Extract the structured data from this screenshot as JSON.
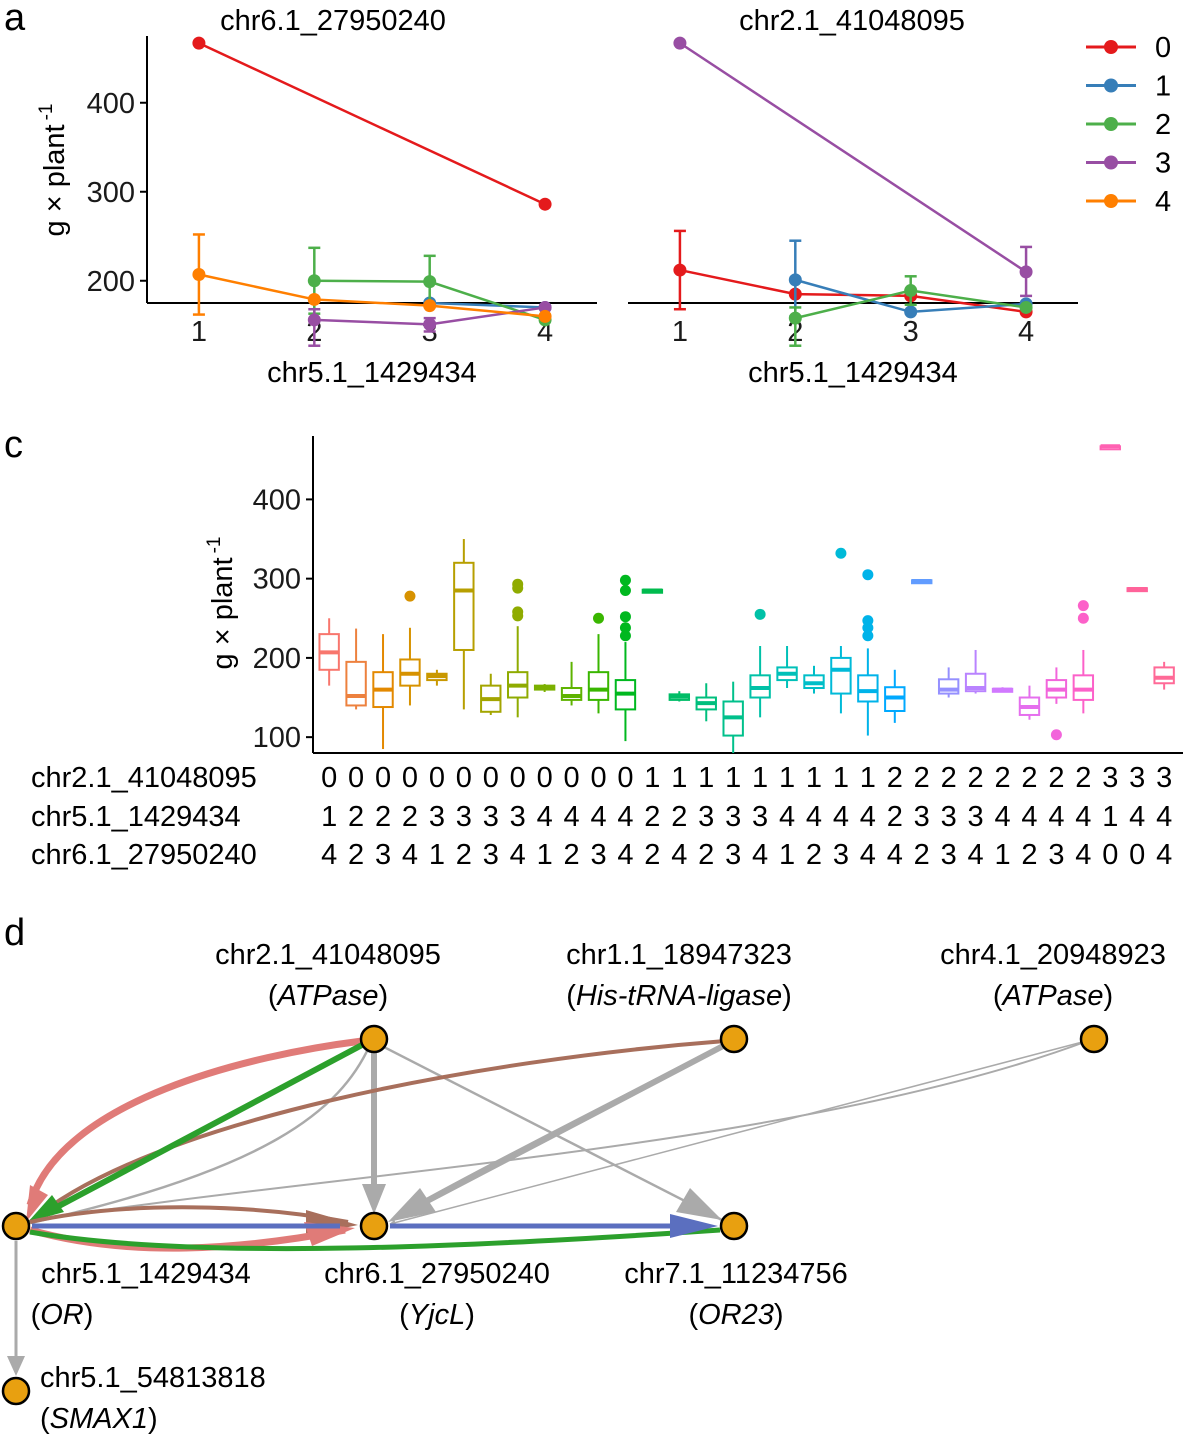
{
  "panel_labels": {
    "a": "a",
    "c": "c",
    "d": "d"
  },
  "chart_data": [
    {
      "id": "a-left",
      "type": "line",
      "title": "chr6.1_27950240",
      "xlabel": "chr5.1_1429434",
      "ylabel": "g × plant",
      "ylabel_sup": "-1",
      "x": [
        1,
        2,
        3,
        4
      ],
      "xlim": [
        0.55,
        4.45
      ],
      "ylim": [
        175,
        475
      ],
      "yticks": [
        200,
        300,
        400
      ],
      "series": [
        {
          "name": "0",
          "color": "#e41a1c",
          "points": [
            [
              1,
              467,
              null,
              null
            ],
            [
              4,
              286,
              null,
              null
            ]
          ]
        },
        {
          "name": "1",
          "color": "#377eb8",
          "points": [
            [
              3,
              175,
              null,
              null
            ],
            [
              4,
              170,
              null,
              null
            ]
          ]
        },
        {
          "name": "2",
          "color": "#4daf4a",
          "points": [
            [
              2,
              200,
              163,
              237
            ],
            [
              3,
              199,
              171,
              228
            ],
            [
              4,
              156,
              null,
              null
            ]
          ]
        },
        {
          "name": "3",
          "color": "#984ea3",
          "points": [
            [
              2,
              156,
              127,
              168
            ],
            [
              3,
              151,
              143,
              158
            ],
            [
              4,
              170,
              null,
              null
            ]
          ]
        },
        {
          "name": "4",
          "color": "#ff7f00",
          "points": [
            [
              1,
              207,
              162,
              252
            ],
            [
              2,
              179,
              null,
              null
            ],
            [
              3,
              172,
              null,
              null
            ],
            [
              4,
              160,
              null,
              null
            ]
          ]
        }
      ]
    },
    {
      "id": "a-right",
      "type": "line",
      "title": "chr2.1_41048095",
      "xlabel": "chr5.1_1429434",
      "x": [
        1,
        2,
        3,
        4
      ],
      "xlim": [
        0.55,
        4.45
      ],
      "ylim": [
        175,
        475
      ],
      "series": [
        {
          "name": "0",
          "color": "#e41a1c",
          "points": [
            [
              1,
              212,
              168,
              256
            ],
            [
              2,
              185,
              null,
              null
            ],
            [
              3,
              183,
              null,
              null
            ],
            [
              4,
              165,
              null,
              null
            ]
          ]
        },
        {
          "name": "1",
          "color": "#377eb8",
          "points": [
            [
              2,
              201,
              160,
              245
            ],
            [
              3,
              165,
              null,
              null
            ],
            [
              4,
              174,
              null,
              null
            ]
          ]
        },
        {
          "name": "2",
          "color": "#4daf4a",
          "points": [
            [
              2,
              158,
              127,
              170
            ],
            [
              3,
              189,
              173,
              205
            ],
            [
              4,
              170,
              null,
              null
            ]
          ]
        },
        {
          "name": "3",
          "color": "#984ea3",
          "points": [
            [
              1,
              467,
              null,
              null
            ],
            [
              4,
              210,
              183,
              238
            ]
          ]
        }
      ]
    },
    {
      "id": "c",
      "type": "box",
      "ylabel": "g × plant",
      "ylabel_sup": "-1",
      "ylim": [
        80,
        480
      ],
      "yticks": [
        100,
        200,
        300,
        400
      ],
      "row_labels": [
        "chr2.1_41048095",
        "chr5.1_1429434",
        "chr6.1_27950240"
      ],
      "boxes": [
        {
          "g": [
            "0",
            "1",
            "4"
          ],
          "color": "#f8766d",
          "stats": [
            165,
            185,
            207,
            230,
            250
          ],
          "out": []
        },
        {
          "g": [
            "0",
            "2",
            "2"
          ],
          "color": "#ed813e",
          "stats": [
            135,
            140,
            152,
            195,
            237
          ],
          "out": []
        },
        {
          "g": [
            "0",
            "2",
            "3"
          ],
          "color": "#e38900",
          "stats": [
            85,
            138,
            160,
            182,
            230
          ],
          "out": []
        },
        {
          "g": [
            "0",
            "2",
            "4"
          ],
          "color": "#d79200",
          "stats": [
            140,
            165,
            180,
            198,
            238
          ],
          "out": [
            278
          ]
        },
        {
          "g": [
            "0",
            "3",
            "1"
          ],
          "color": "#c99800",
          "stats": [
            165,
            172,
            177,
            180,
            185
          ],
          "out": []
        },
        {
          "g": [
            "0",
            "3",
            "2"
          ],
          "color": "#b79f00",
          "stats": [
            135,
            210,
            285,
            320,
            350
          ],
          "out": []
        },
        {
          "g": [
            "0",
            "3",
            "3"
          ],
          "color": "#a3a500",
          "stats": [
            128,
            132,
            148,
            165,
            180
          ],
          "out": []
        },
        {
          "g": [
            "0",
            "3",
            "4"
          ],
          "color": "#8fab00",
          "stats": [
            125,
            150,
            165,
            182,
            240
          ],
          "out": [
            253,
            258,
            288,
            293
          ]
        },
        {
          "g": [
            "0",
            "4",
            "1"
          ],
          "color": "#7bb000",
          "stats": [
            157,
            160,
            162,
            165,
            167
          ],
          "out": []
        },
        {
          "g": [
            "0",
            "4",
            "2"
          ],
          "color": "#5eb300",
          "stats": [
            140,
            147,
            152,
            162,
            195
          ],
          "out": []
        },
        {
          "g": [
            "0",
            "4",
            "3"
          ],
          "color": "#39b600",
          "stats": [
            130,
            147,
            160,
            182,
            230
          ],
          "out": [
            250
          ]
        },
        {
          "g": [
            "0",
            "4",
            "4"
          ],
          "color": "#00b81f",
          "stats": [
            95,
            135,
            155,
            172,
            220
          ],
          "out": [
            228,
            238,
            252,
            285,
            298
          ]
        },
        {
          "g": [
            "1",
            "2",
            "2"
          ],
          "color": "#00bb4e",
          "stats": [
            284,
            284,
            285,
            286,
            286
          ],
          "out": []
        },
        {
          "g": [
            "1",
            "2",
            "4"
          ],
          "color": "#00bd67",
          "stats": [
            145,
            147,
            151,
            154,
            158
          ],
          "out": []
        },
        {
          "g": [
            "1",
            "3",
            "2"
          ],
          "color": "#00bf7d",
          "stats": [
            120,
            135,
            143,
            150,
            168
          ],
          "out": []
        },
        {
          "g": [
            "1",
            "3",
            "3"
          ],
          "color": "#00c08b",
          "stats": [
            80,
            102,
            125,
            145,
            170
          ],
          "out": []
        },
        {
          "g": [
            "1",
            "3",
            "4"
          ],
          "color": "#00c1a7",
          "stats": [
            125,
            150,
            162,
            178,
            215
          ],
          "out": [
            255
          ]
        },
        {
          "g": [
            "1",
            "4",
            "1"
          ],
          "color": "#00c0b8",
          "stats": [
            162,
            172,
            180,
            188,
            215
          ],
          "out": []
        },
        {
          "g": [
            "1",
            "4",
            "2"
          ],
          "color": "#00bec8",
          "stats": [
            155,
            162,
            168,
            178,
            190
          ],
          "out": []
        },
        {
          "g": [
            "1",
            "4",
            "3"
          ],
          "color": "#00bad8",
          "stats": [
            130,
            155,
            185,
            200,
            215
          ],
          "out": [
            332
          ]
        },
        {
          "g": [
            "1",
            "4",
            "4"
          ],
          "color": "#00b3e9",
          "stats": [
            102,
            145,
            158,
            178,
            212
          ],
          "out": [
            228,
            238,
            247,
            305
          ]
        },
        {
          "g": [
            "2",
            "2",
            "4"
          ],
          "color": "#00a9ff",
          "stats": [
            118,
            133,
            150,
            163,
            185
          ],
          "out": []
        },
        {
          "g": [
            "2",
            "3",
            "2"
          ],
          "color": "#619cff",
          "stats": [
            296,
            296,
            297,
            298,
            298
          ],
          "out": []
        },
        {
          "g": [
            "2",
            "3",
            "3"
          ],
          "color": "#9590ff",
          "stats": [
            150,
            155,
            160,
            173,
            188
          ],
          "out": []
        },
        {
          "g": [
            "2",
            "3",
            "4"
          ],
          "color": "#b983ff",
          "stats": [
            155,
            158,
            162,
            180,
            210
          ],
          "out": []
        },
        {
          "g": [
            "2",
            "4",
            "1"
          ],
          "color": "#d179ff",
          "stats": [
            157,
            158,
            160,
            161,
            163
          ],
          "out": []
        },
        {
          "g": [
            "2",
            "4",
            "2"
          ],
          "color": "#e56fee",
          "stats": [
            122,
            128,
            138,
            150,
            165
          ],
          "out": []
        },
        {
          "g": [
            "2",
            "4",
            "3"
          ],
          "color": "#f265db",
          "stats": [
            142,
            150,
            160,
            172,
            188
          ],
          "out": [
            103
          ]
        },
        {
          "g": [
            "2",
            "4",
            "4"
          ],
          "color": "#fc61c9",
          "stats": [
            130,
            147,
            160,
            178,
            210
          ],
          "out": [
            250,
            266
          ]
        },
        {
          "g": [
            "3",
            "1",
            "0"
          ],
          "color": "#ff61b2",
          "stats": [
            467,
            467,
            467,
            467,
            467
          ],
          "out": []
        },
        {
          "g": [
            "3",
            "4",
            "0"
          ],
          "color": "#ff639a",
          "stats": [
            286,
            286,
            287,
            288,
            288
          ],
          "out": []
        },
        {
          "g": [
            "3",
            "4",
            "4"
          ],
          "color": "#ff6a97",
          "stats": [
            160,
            168,
            175,
            188,
            195
          ],
          "out": []
        }
      ]
    }
  ],
  "legend": {
    "items": [
      {
        "label": "0",
        "color": "#e41a1c"
      },
      {
        "label": "1",
        "color": "#377eb8"
      },
      {
        "label": "2",
        "color": "#4daf4a"
      },
      {
        "label": "3",
        "color": "#984ea3"
      },
      {
        "label": "4",
        "color": "#ff7f00"
      }
    ]
  },
  "network": {
    "node_color": "#e8a010",
    "nodes": [
      {
        "id": "n2",
        "label": "chr2.1_41048095",
        "gene": "ATPase"
      },
      {
        "id": "n1",
        "label": "chr1.1_18947323",
        "gene": "His-tRNA-ligase"
      },
      {
        "id": "n4",
        "label": "chr4.1_20948923",
        "gene": "ATPase"
      },
      {
        "id": "n5",
        "label": "chr5.1_1429434",
        "gene": "OR"
      },
      {
        "id": "n6",
        "label": "chr6.1_27950240",
        "gene": "YjcL"
      },
      {
        "id": "n7",
        "label": "chr7.1_11234756",
        "gene": "OR23"
      },
      {
        "id": "n5b",
        "label": "chr5.1_54813818",
        "gene": "SMAX1"
      }
    ],
    "edges": [
      {
        "from": "n2",
        "to": "n5",
        "color": "#e07b78"
      },
      {
        "from": "n2",
        "to": "n5",
        "color": "#2ca02c"
      },
      {
        "from": "n1",
        "to": "n5",
        "color": "#a86f5c"
      },
      {
        "from": "n2",
        "to": "n5",
        "color": "#aaaaaa"
      },
      {
        "from": "n2",
        "to": "n6",
        "color": "#aaaaaa"
      },
      {
        "from": "n2",
        "to": "n7",
        "color": "#aaaaaa"
      },
      {
        "from": "n1",
        "to": "n6",
        "color": "#aaaaaa"
      },
      {
        "from": "n4",
        "to": "n5",
        "color": "#aaaaaa"
      },
      {
        "from": "n5",
        "to": "n6",
        "color": "#5b6fbf"
      },
      {
        "from": "n5",
        "to": "n7",
        "color": "#5b6fbf"
      },
      {
        "from": "n5",
        "to": "n6",
        "color": "#a86f5c"
      },
      {
        "from": "n5",
        "to": "n6",
        "color": "#e07b78"
      },
      {
        "from": "n5",
        "to": "n7",
        "color": "#2ca02c"
      },
      {
        "from": "n5",
        "to": "n5b",
        "color": "#aaaaaa"
      }
    ]
  }
}
